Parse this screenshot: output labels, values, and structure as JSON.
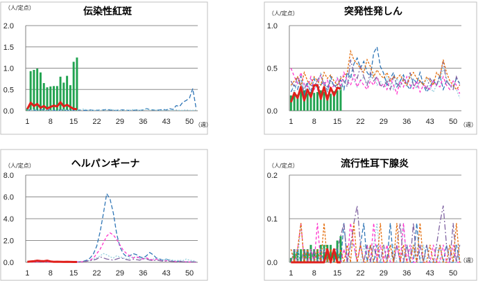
{
  "chart_data": [
    {
      "type": "bar",
      "title": "伝染性紅斑",
      "ylabel": "（人/定点）",
      "xlabel": "（週）",
      "ylim": [
        0,
        2.0
      ],
      "yticks": [
        "0.0",
        "0.5",
        "1.0",
        "1.5",
        "2.0"
      ],
      "xticks": [
        "1",
        "8",
        "15",
        "22",
        "29",
        "36",
        "43",
        "50"
      ],
      "bars": [
        0.06,
        0.93,
        0.96,
        0.99,
        0.9,
        0.65,
        0.55,
        0.57,
        0.58,
        0.58,
        0.8,
        0.66,
        0.82,
        0.6,
        1.15,
        1.25
      ],
      "current": [
        0.04,
        0.19,
        0.11,
        0.16,
        0.07,
        0.11,
        0.05,
        0.09,
        0.12,
        0.1,
        0.2,
        0.1,
        0.14,
        0.09,
        0.04,
        0.04
      ],
      "past": [
        [
          0.02,
          0.02,
          0.01,
          0.02,
          0.03,
          0.02,
          0.02,
          0.02,
          0.01,
          0.01,
          0.02,
          0.02,
          0.01,
          0.02,
          0.01,
          0.01,
          0.02,
          0.01,
          0.01,
          0.02,
          0.01,
          0.01,
          0.02,
          0.02,
          0.03,
          0.02,
          0.01,
          0.01,
          0.02,
          0.02,
          0.01,
          0.01,
          0.01,
          0.02,
          0.01,
          0.02,
          0.05,
          0.03,
          0.02,
          0.01,
          0.02,
          0.03,
          0.02,
          0.05,
          0.03,
          0.12,
          0.1,
          0.2,
          0.24,
          0.3,
          0.52,
          0.06
        ],
        [
          0.02,
          0.01,
          0.02,
          0.01,
          0.02,
          0.01,
          0.02,
          0.01,
          0.02,
          0.01,
          0.01,
          0.02,
          0.01,
          0.01,
          0.02,
          0.01,
          0.02,
          0.04,
          0.02,
          0.01,
          0.01,
          0.02,
          0.01,
          0.02,
          0.01,
          0.03,
          0.02,
          0.01,
          0.01,
          0.01,
          0.02,
          0.01,
          0.03,
          0.02,
          0.01,
          0.02,
          0.04,
          0.02,
          0.02,
          0.02,
          0.01,
          0.01,
          0.02,
          0.01,
          0.01,
          0.02,
          0.01,
          0.01,
          0.02,
          0.01,
          0.01,
          0.02
        ]
      ]
    },
    {
      "type": "bar",
      "title": "突発性発しん",
      "ylabel": "（人/定点）",
      "xlabel": "（週）",
      "ylim": [
        0,
        1.0
      ],
      "yticks": [
        "0.0",
        "0.5",
        "1.0"
      ],
      "xticks": [
        "1",
        "8",
        "15",
        "22",
        "29",
        "36",
        "43",
        "50"
      ],
      "bars": [
        0.18,
        0.22,
        0.19,
        0.23,
        0.24,
        0.24,
        0.22,
        0.21,
        0.22,
        0.24,
        0.22,
        0.19,
        0.2,
        0.23,
        0.24,
        0.3
      ],
      "current": [
        0.1,
        0.21,
        0.15,
        0.28,
        0.12,
        0.25,
        0.16,
        0.3,
        0.3,
        0.14,
        0.28,
        0.13,
        0.27,
        0.18,
        0.27,
        0.26
      ],
      "past": [
        [
          0.22,
          0.3,
          0.25,
          0.41,
          0.18,
          0.32,
          0.22,
          0.38,
          0.25,
          0.3,
          0.35,
          0.22,
          0.4,
          0.28,
          0.31,
          0.36,
          0.25,
          0.45,
          0.38,
          0.55,
          0.62,
          0.5,
          0.58,
          0.45,
          0.4,
          0.68,
          0.75,
          0.52,
          0.44,
          0.3,
          0.38,
          0.45,
          0.28,
          0.35,
          0.42,
          0.3,
          0.25,
          0.38,
          0.32,
          0.45,
          0.3,
          0.22,
          0.28,
          0.36,
          0.3,
          0.42,
          0.25,
          0.35,
          0.3,
          0.28,
          0.38,
          0.32
        ],
        [
          0.3,
          0.22,
          0.35,
          0.28,
          0.32,
          0.2,
          0.38,
          0.3,
          0.25,
          0.45,
          0.3,
          0.22,
          0.35,
          0.28,
          0.4,
          0.25,
          0.35,
          0.3,
          0.42,
          0.36,
          0.28,
          0.35,
          0.4,
          0.3,
          0.38,
          0.45,
          0.3,
          0.35,
          0.28,
          0.4,
          0.32,
          0.25,
          0.38,
          0.3,
          0.35,
          0.28,
          0.42,
          0.32,
          0.26,
          0.35,
          0.3,
          0.38,
          0.28,
          0.22,
          0.3,
          0.35,
          0.5,
          0.38,
          0.3,
          0.28,
          0.25,
          0.15
        ],
        [
          0.5,
          0.4,
          0.32,
          0.45,
          0.3,
          0.28,
          0.4,
          0.25,
          0.32,
          0.42,
          0.3,
          0.36,
          0.24,
          0.3,
          0.38,
          0.28,
          0.45,
          0.35,
          0.3,
          0.42,
          0.28,
          0.36,
          0.3,
          0.25,
          0.35,
          0.3,
          0.4,
          0.28,
          0.32,
          0.25,
          0.38,
          0.3,
          0.2,
          0.35,
          0.28,
          0.4,
          0.3,
          0.26,
          0.35,
          0.22,
          0.3,
          0.28,
          0.25,
          0.35,
          0.3,
          0.28,
          0.4,
          0.3,
          0.25,
          0.35,
          0.3,
          0.2
        ],
        [
          0.35,
          0.28,
          0.4,
          0.3,
          0.25,
          0.35,
          0.3,
          0.28,
          0.36,
          0.42,
          0.3,
          0.28,
          0.35,
          0.3,
          0.26,
          0.4,
          0.35,
          0.28,
          0.6,
          0.45,
          0.38,
          0.52,
          0.4,
          0.3,
          0.45,
          0.35,
          0.4,
          0.3,
          0.28,
          0.35,
          0.25,
          0.4,
          0.32,
          0.28,
          0.38,
          0.3,
          0.45,
          0.3,
          0.28,
          0.35,
          0.3,
          0.26,
          0.38,
          0.32,
          0.3,
          0.4,
          0.58,
          0.35,
          0.3,
          0.25,
          0.4,
          0.3
        ],
        [
          0.3,
          0.35,
          0.4,
          0.28,
          0.45,
          0.35,
          0.3,
          0.4,
          0.35,
          0.3,
          0.45,
          0.38,
          0.42,
          0.35,
          0.3,
          0.38,
          0.4,
          0.45,
          0.7,
          0.6,
          0.55,
          0.5,
          0.45,
          0.6,
          0.52,
          0.4,
          0.48,
          0.42,
          0.38,
          0.45,
          0.35,
          0.4,
          0.38,
          0.42,
          0.35,
          0.3,
          0.4,
          0.45,
          0.38,
          0.35,
          0.3,
          0.4,
          0.35,
          0.3,
          0.45,
          0.4,
          0.6,
          0.45,
          0.35,
          0.3,
          0.25,
          0.3
        ]
      ]
    },
    {
      "type": "bar",
      "title": "ヘルパンギーナ",
      "ylabel": "（人/定点）",
      "xlabel": "（週）",
      "ylim": [
        0,
        8.0
      ],
      "yticks": [
        "0.0",
        "2.0",
        "4.0",
        "6.0",
        "8.0"
      ],
      "xticks": [
        "1",
        "8",
        "15",
        "22",
        "29",
        "36",
        "43",
        "50"
      ],
      "bars": [
        0.02,
        0.03,
        0.02,
        0.03,
        0.02,
        0.03,
        0.02,
        0.03,
        0.03,
        0.02,
        0.03,
        0.02,
        0.02,
        0.03,
        0.02,
        0.03
      ],
      "current": [
        0.05,
        0.08,
        0.1,
        0.15,
        0.12,
        0.1,
        0.15,
        0.08,
        0.05,
        0.06,
        0.05,
        0.04,
        0.05,
        0.04,
        0.03,
        0.03
      ],
      "past": [
        [
          0.05,
          0.03,
          0.04,
          0.05,
          0.03,
          0.04,
          0.05,
          0.03,
          0.04,
          0.05,
          0.03,
          0.02,
          0.04,
          0.05,
          0.03,
          0.04,
          0.05,
          0.1,
          0.2,
          0.4,
          0.8,
          1.5,
          2.8,
          4.5,
          6.3,
          5.8,
          4.5,
          2.6,
          1.4,
          0.8,
          0.5,
          0.6,
          0.8,
          0.7,
          0.5,
          0.4,
          0.6,
          0.9,
          0.7,
          0.4,
          0.3,
          0.2,
          0.3,
          0.15,
          0.1,
          0.08,
          0.1,
          0.05,
          0.04,
          0.05,
          0.04,
          0.03
        ],
        [
          0.03,
          0.02,
          0.03,
          0.04,
          0.03,
          0.02,
          0.03,
          0.02,
          0.04,
          0.03,
          0.02,
          0.03,
          0.04,
          0.03,
          0.02,
          0.03,
          0.04,
          0.05,
          0.1,
          0.2,
          0.3,
          0.4,
          0.6,
          0.8,
          0.7,
          0.5,
          0.4,
          0.6,
          0.5,
          0.4,
          0.3,
          0.4,
          0.5,
          0.45,
          0.35,
          0.4,
          0.3,
          0.25,
          0.3,
          0.35,
          0.25,
          0.2,
          0.3,
          0.25,
          0.2,
          0.15,
          0.2,
          0.15,
          0.3,
          0.2,
          0.15,
          0.1
        ],
        [
          0.02,
          0.03,
          0.02,
          0.03,
          0.04,
          0.02,
          0.03,
          0.02,
          0.03,
          0.04,
          0.03,
          0.02,
          0.03,
          0.04,
          0.02,
          0.03,
          0.04,
          0.06,
          0.1,
          0.2,
          0.4,
          0.8,
          1.2,
          1.8,
          2.4,
          2.7,
          2.5,
          2.1,
          1.6,
          1.1,
          0.8,
          0.6,
          0.4,
          0.5,
          0.4,
          0.3,
          0.4,
          0.3,
          0.2,
          0.3,
          0.2,
          0.1,
          0.15,
          0.1,
          0.08,
          0.06,
          0.08,
          0.05,
          0.04,
          0.03,
          0.02,
          0.02
        ],
        [
          0.04,
          0.05,
          0.04,
          0.03,
          0.04,
          0.05,
          0.04,
          0.03,
          0.05,
          0.04,
          0.03,
          0.04,
          0.05,
          0.03,
          0.04,
          0.05,
          0.06,
          0.08,
          0.1,
          0.15,
          0.2,
          0.3,
          0.5,
          0.4,
          0.3,
          0.25,
          0.2,
          0.3,
          0.4,
          0.35,
          0.25,
          0.2,
          0.3,
          0.25,
          0.2,
          0.35,
          0.3,
          0.2,
          0.15,
          0.2,
          0.15,
          0.1,
          0.12,
          0.1,
          0.08,
          0.06,
          0.08,
          0.05,
          0.04,
          0.05,
          0.04,
          0.03
        ]
      ]
    },
    {
      "type": "bar",
      "title": "流行性耳下腺炎",
      "ylabel": "（人/定点）",
      "xlabel": "（週）",
      "ylim": [
        0,
        0.2
      ],
      "yticks": [
        "0.0",
        "0.1",
        "0.2"
      ],
      "xticks": [
        "1",
        "8",
        "15",
        "22",
        "29",
        "36",
        "43",
        "50"
      ],
      "bars": [
        0.01,
        0.03,
        0.03,
        0.03,
        0.03,
        0.03,
        0.04,
        0.03,
        0.03,
        0.04,
        0.04,
        0.04,
        0.04,
        0.03,
        0.05,
        0.06
      ],
      "current": [
        0.0,
        0.0,
        0.0,
        0.0,
        0.0,
        0.0,
        0.0,
        0.0,
        0.0,
        0.0,
        0.0,
        0.03,
        0.0,
        0.03,
        0.0,
        0.0
      ],
      "past": [
        [
          0.0,
          0.0,
          0.03,
          0.0,
          0.0,
          0.03,
          0.0,
          0.0,
          0.0,
          0.03,
          0.0,
          0.03,
          0.0,
          0.0,
          0.03,
          0.0,
          0.09,
          0.0,
          0.04,
          0.04,
          0.0,
          0.04,
          0.09,
          0.0,
          0.04,
          0.0,
          0.04,
          0.0,
          0.0,
          0.0,
          0.09,
          0.0,
          0.04,
          0.0,
          0.0,
          0.04,
          0.0,
          0.0,
          0.09,
          0.0,
          0.0,
          0.04,
          0.0,
          0.0,
          0.0,
          0.04,
          0.0,
          0.04,
          0.0,
          0.0,
          0.04,
          0.0
        ],
        [
          0.0,
          0.03,
          0.0,
          0.09,
          0.0,
          0.0,
          0.03,
          0.0,
          0.0,
          0.03,
          0.03,
          0.0,
          0.0,
          0.03,
          0.0,
          0.0,
          0.03,
          0.0,
          0.04,
          0.04,
          0.0,
          0.0,
          0.04,
          0.0,
          0.0,
          0.04,
          0.09,
          0.0,
          0.04,
          0.0,
          0.0,
          0.04,
          0.0,
          0.0,
          0.09,
          0.0,
          0.0,
          0.04,
          0.0,
          0.0,
          0.04,
          0.0,
          0.0,
          0.0,
          0.04,
          0.0,
          0.0,
          0.0,
          0.04,
          0.0,
          0.0,
          0.04
        ],
        [
          0.0,
          0.0,
          0.03,
          0.09,
          0.0,
          0.0,
          0.03,
          0.0,
          0.09,
          0.0,
          0.0,
          0.03,
          0.0,
          0.03,
          0.0,
          0.0,
          0.03,
          0.0,
          0.09,
          0.04,
          0.0,
          0.04,
          0.0,
          0.04,
          0.0,
          0.09,
          0.0,
          0.04,
          0.0,
          0.04,
          0.0,
          0.0,
          0.04,
          0.0,
          0.09,
          0.0,
          0.04,
          0.0,
          0.0,
          0.04,
          0.0,
          0.0,
          0.0,
          0.04,
          0.0,
          0.0,
          0.04,
          0.0,
          0.0,
          0.04,
          0.0,
          0.0
        ],
        [
          0.0,
          0.03,
          0.0,
          0.0,
          0.03,
          0.0,
          0.0,
          0.03,
          0.0,
          0.0,
          0.03,
          0.0,
          0.0,
          0.03,
          0.03,
          0.06,
          0.09,
          0.0,
          0.04,
          0.09,
          0.13,
          0.04,
          0.0,
          0.04,
          0.0,
          0.04,
          0.0,
          0.0,
          0.04,
          0.0,
          0.04,
          0.0,
          0.04,
          0.09,
          0.0,
          0.04,
          0.0,
          0.09,
          0.0,
          0.04,
          0.0,
          0.04,
          0.0,
          0.0,
          0.04,
          0.09,
          0.13,
          0.04,
          0.0,
          0.09,
          0.0,
          0.04
        ],
        [
          0.03,
          0.0,
          0.03,
          0.09,
          0.0,
          0.03,
          0.0,
          0.0,
          0.03,
          0.0,
          0.09,
          0.0,
          0.03,
          0.0,
          0.0,
          0.03,
          0.0,
          0.04,
          0.0,
          0.09,
          0.0,
          0.04,
          0.0,
          0.0,
          0.04,
          0.0,
          0.0,
          0.09,
          0.0,
          0.0,
          0.04,
          0.0,
          0.09,
          0.0,
          0.04,
          0.0,
          0.0,
          0.04,
          0.0,
          0.09,
          0.0,
          0.0,
          0.04,
          0.0,
          0.0,
          0.04,
          0.0,
          0.0,
          0.04,
          0.0,
          0.09,
          0.0
        ]
      ]
    }
  ],
  "colors": {
    "bar": "#21A350",
    "current": "#E0201C",
    "past": [
      "#2E75B6",
      "#92CDDC",
      "#FF33CC",
      "#8064A2",
      "#E46C0A"
    ],
    "frame": "#BFBFBF",
    "grid": "#8C8C8C"
  }
}
